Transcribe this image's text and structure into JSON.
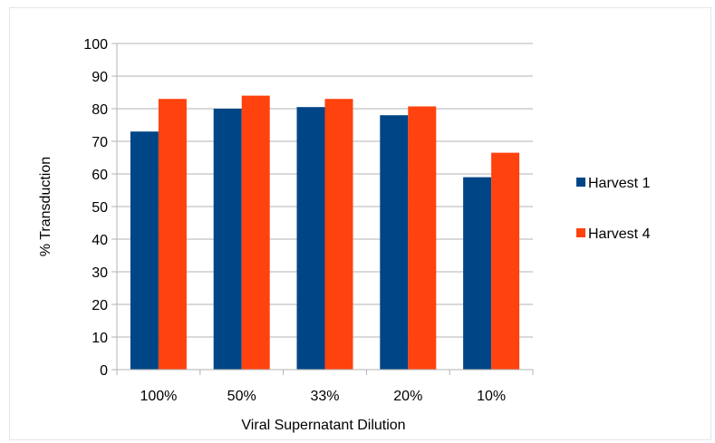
{
  "chart_data": {
    "type": "bar",
    "title": "",
    "xlabel": "Viral Supernatant Dilution",
    "ylabel": "% Transduction",
    "categories": [
      "100%",
      "50%",
      "33%",
      "20%",
      "10%"
    ],
    "ylim": [
      0,
      100
    ],
    "yticks": [
      0,
      10,
      20,
      30,
      40,
      50,
      60,
      70,
      80,
      90,
      100
    ],
    "grid": true,
    "legend_position": "right",
    "series": [
      {
        "name": "Harvest 1",
        "color": "#004586",
        "values": [
          73,
          80,
          80.5,
          78,
          59
        ]
      },
      {
        "name": "Harvest 4",
        "color": "#ff420e",
        "values": [
          83,
          84,
          83,
          80.7,
          66.5
        ]
      }
    ]
  }
}
